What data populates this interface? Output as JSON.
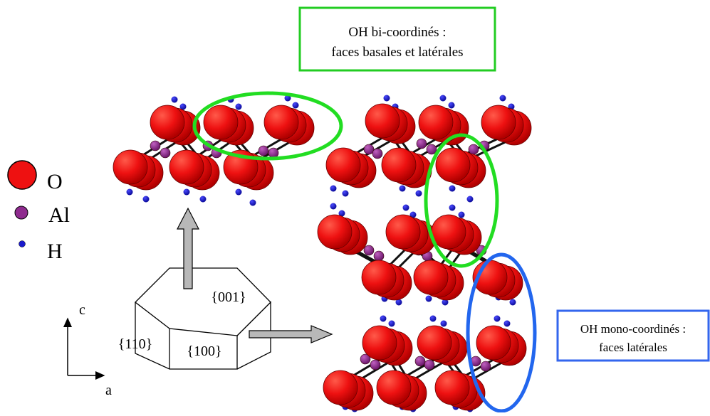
{
  "callouts": {
    "top_line1": "OH bi-coordinés :",
    "top_line2": "faces basales et latérales",
    "right_line1": "OH mono-coordinés :",
    "right_line2": "faces latérales",
    "top_color": "#22cc22",
    "right_color": "#3366ee"
  },
  "legend": {
    "o_label": "O",
    "al_label": "Al",
    "h_label": "H",
    "o_color": "#ee1111",
    "al_color": "#8e2a8e",
    "h_color": "#1a1acc"
  },
  "crystal": {
    "face_001": "{001}",
    "face_110": "{110}",
    "face_100": "{100}"
  },
  "axes": {
    "c_label": "c",
    "a_label": "a"
  },
  "ellipse_colors": {
    "green": "#22dd22",
    "blue": "#2266ee"
  }
}
